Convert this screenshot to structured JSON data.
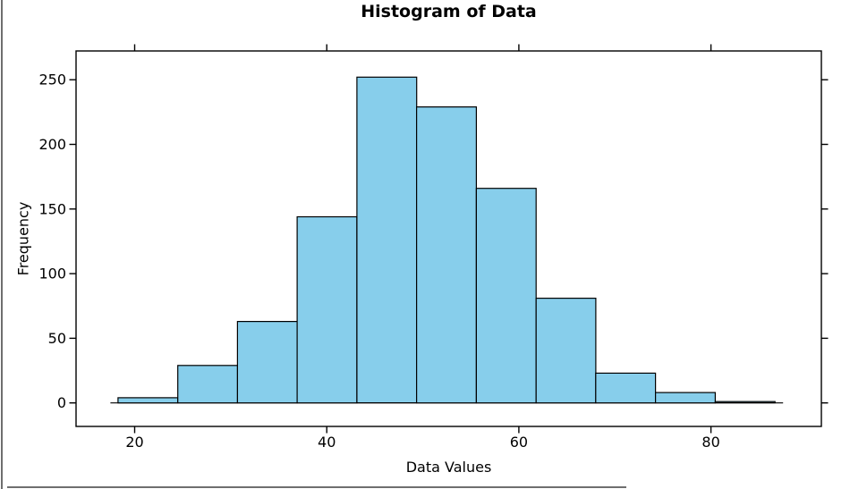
{
  "chart_data": {
    "type": "histogram",
    "title": "Histogram of Data",
    "xlabel": "Data Values",
    "ylabel": "Frequency",
    "bin_edges": [
      18.27,
      24.49,
      30.71,
      36.92,
      43.14,
      49.36,
      55.58,
      61.8,
      68.01,
      74.23,
      80.45,
      86.67
    ],
    "counts": [
      4,
      29,
      63,
      144,
      252,
      229,
      166,
      81,
      23,
      8,
      1
    ],
    "total_count": 1000,
    "xticks": [
      20,
      40,
      60,
      80
    ],
    "yticks": [
      0,
      50,
      100,
      150,
      200,
      250
    ],
    "xlim": [
      13.9,
      91.5
    ],
    "ylim": [
      -18.2,
      272.3
    ],
    "grid": false,
    "legend": "none",
    "tick_direction": "out",
    "ticks_on_all_sides": true,
    "bar_fill": "#87CEEB",
    "bar_edge": "#000000",
    "axis_color": "#000000",
    "background": "#ffffff",
    "window_edge_color": "#6f6f6f"
  }
}
